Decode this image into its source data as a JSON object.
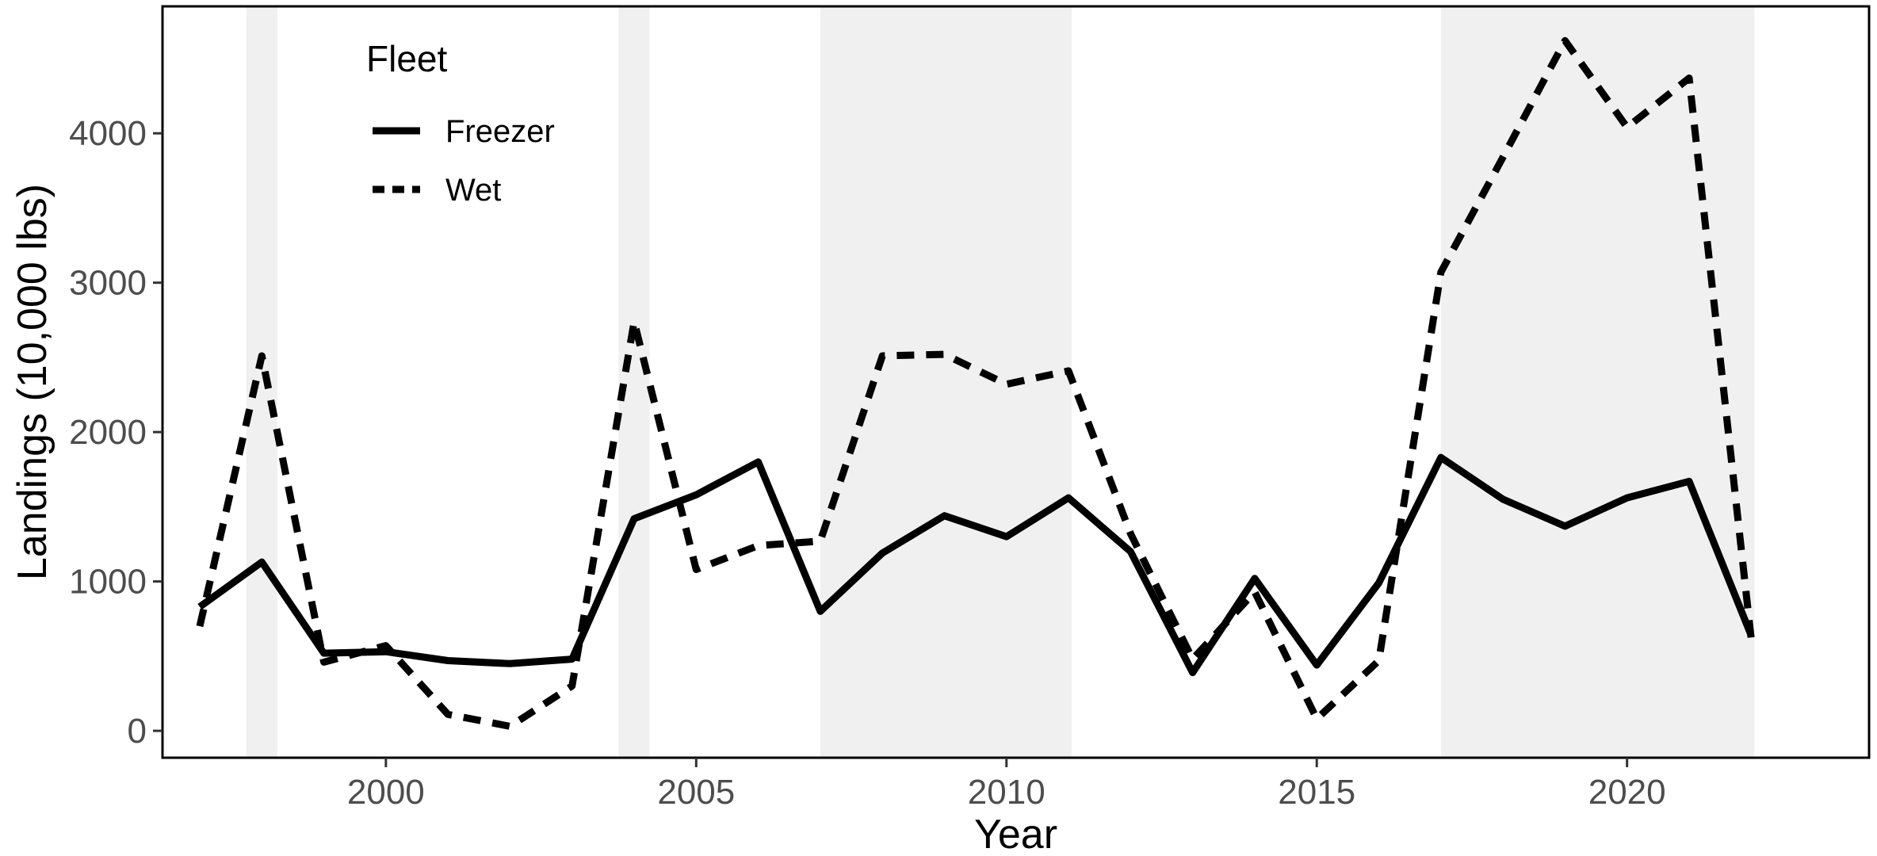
{
  "chart_data": {
    "type": "line",
    "xlabel": "Year",
    "ylabel": "Landings (10,000 lbs)",
    "xlim": [
      1996.4,
      2023.9
    ],
    "ylim": [
      -180,
      4850
    ],
    "x_ticks": [
      2000,
      2005,
      2010,
      2015,
      2020
    ],
    "y_ticks": [
      0,
      1000,
      2000,
      3000,
      4000
    ],
    "grid": false,
    "legend": {
      "title": "Fleet",
      "position": "top-left"
    },
    "shaded_periods": [
      [
        1997.75,
        1998.25
      ],
      [
        2003.75,
        2004.25
      ],
      [
        2007,
        2011.05
      ],
      [
        2017,
        2022.05
      ]
    ],
    "colors": {
      "line": "#000000",
      "shade": "#f0f0f0",
      "tick_text": "#4d4d4d"
    },
    "x": [
      1997,
      1998,
      1999,
      2000,
      2001,
      2002,
      2003,
      2004,
      2005,
      2006,
      2007,
      2008,
      2009,
      2010,
      2011,
      2012,
      2013,
      2014,
      2015,
      2016,
      2017,
      2018,
      2019,
      2020,
      2021,
      2022
    ],
    "series": [
      {
        "name": "Freezer",
        "style": "solid",
        "values": [
          830,
          1130,
          520,
          530,
          470,
          450,
          480,
          1420,
          1580,
          1800,
          800,
          1190,
          1440,
          1300,
          1560,
          1200,
          390,
          1020,
          440,
          990,
          1830,
          1550,
          1370,
          1560,
          1670,
          640
        ]
      },
      {
        "name": "Wet",
        "style": "dashed",
        "values": [
          700,
          2510,
          460,
          570,
          110,
          30,
          300,
          2740,
          1080,
          1240,
          1270,
          2510,
          2520,
          2320,
          2410,
          1320,
          480,
          930,
          80,
          470,
          3070,
          3840,
          4620,
          4040,
          4370,
          620
        ]
      }
    ]
  }
}
